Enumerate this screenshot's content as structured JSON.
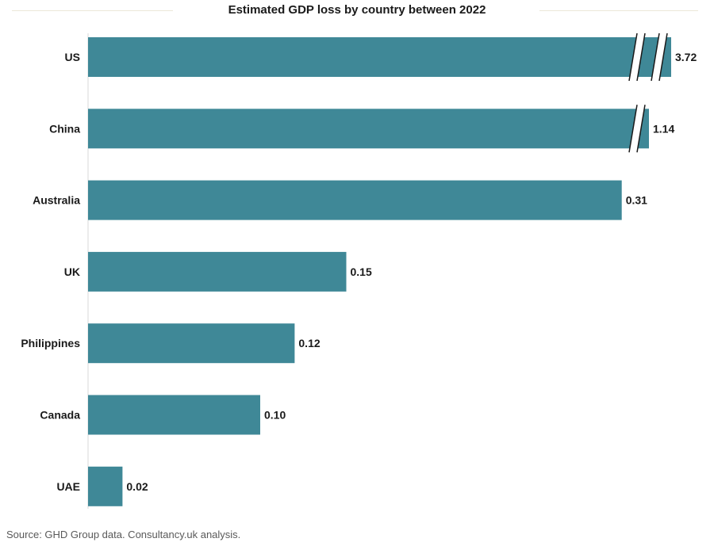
{
  "chart_data": {
    "type": "bar",
    "orientation": "horizontal",
    "title": "Estimated GDP loss by country between 2022",
    "categories": [
      "US",
      "China",
      "Australia",
      "UK",
      "Philippines",
      "Canada",
      "UAE"
    ],
    "values": [
      3.72,
      1.14,
      0.31,
      0.15,
      0.12,
      0.1,
      0.02
    ],
    "value_labels": [
      "3.72",
      "1.14",
      "0.31",
      "0.15",
      "0.12",
      "0.10",
      "0.02"
    ],
    "broken_bars": {
      "US": 2,
      "China": 1
    },
    "bar_color": "#3f8897",
    "grid": false,
    "legend": "none"
  },
  "source": "Source: GHD Group data. Consultancy.uk analysis."
}
